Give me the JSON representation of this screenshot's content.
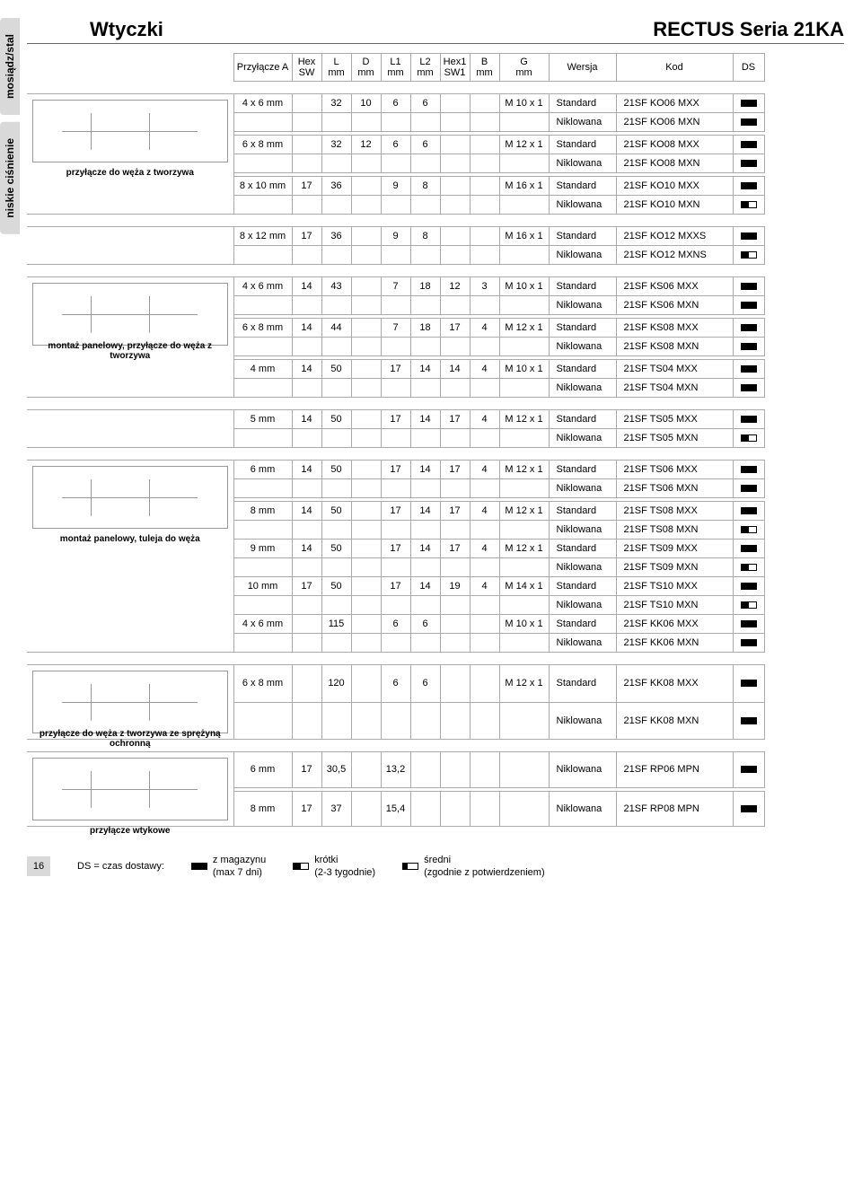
{
  "side_tabs": [
    "mosiądz/stal",
    "niskie ciśnienie"
  ],
  "header": {
    "left": "Wtyczki",
    "right": "RECTUS Seria 21KA"
  },
  "columns": [
    "Przyłącze A",
    "Hex\nSW",
    "L\nmm",
    "D\nmm",
    "L1\nmm",
    "L2\nmm",
    "Hex1\nSW1",
    "B\nmm",
    "G\nmm",
    "Wersja",
    "Kod",
    "DS"
  ],
  "groups": [
    {
      "caption": "przyłącze do węża z tworzywa",
      "rows": [
        {
          "a": "4 x 6 mm",
          "hex": "",
          "l": "32",
          "d": "10",
          "l1": "6",
          "l2": "6",
          "hex1": "",
          "b": "",
          "g": "M 10 x 1",
          "ver": "Standard",
          "kod": "21SF KO06 MXX",
          "ds": "full"
        },
        {
          "a": "",
          "hex": "",
          "l": "",
          "d": "",
          "l1": "",
          "l2": "",
          "hex1": "",
          "b": "",
          "g": "",
          "ver": "Niklowana",
          "kod": "21SF KO06 MXN",
          "ds": "full"
        },
        null,
        {
          "a": "6 x 8 mm",
          "hex": "",
          "l": "32",
          "d": "12",
          "l1": "6",
          "l2": "6",
          "hex1": "",
          "b": "",
          "g": "M 12 x 1",
          "ver": "Standard",
          "kod": "21SF KO08 MXX",
          "ds": "full"
        },
        {
          "a": "",
          "hex": "",
          "l": "",
          "d": "",
          "l1": "",
          "l2": "",
          "hex1": "",
          "b": "",
          "g": "",
          "ver": "Niklowana",
          "kod": "21SF KO08 MXN",
          "ds": "full"
        },
        null,
        {
          "a": "8 x 10 mm",
          "hex": "17",
          "l": "36",
          "d": "",
          "l1": "9",
          "l2": "8",
          "hex1": "",
          "b": "",
          "g": "M 16 x 1",
          "ver": "Standard",
          "kod": "21SF KO10 MXX",
          "ds": "full"
        },
        {
          "a": "",
          "hex": "",
          "l": "",
          "d": "",
          "l1": "",
          "l2": "",
          "hex1": "",
          "b": "",
          "g": "",
          "ver": "Niklowana",
          "kod": "21SF KO10 MXN",
          "ds": "half"
        }
      ]
    },
    {
      "caption": "",
      "rows": [
        {
          "a": "8 x 12 mm",
          "hex": "17",
          "l": "36",
          "d": "",
          "l1": "9",
          "l2": "8",
          "hex1": "",
          "b": "",
          "g": "M 16 x 1",
          "ver": "Standard",
          "kod": "21SF KO12 MXXS",
          "ds": "full"
        },
        {
          "a": "",
          "hex": "",
          "l": "",
          "d": "",
          "l1": "",
          "l2": "",
          "hex1": "",
          "b": "",
          "g": "",
          "ver": "Niklowana",
          "kod": "21SF KO12 MXNS",
          "ds": "half"
        }
      ]
    },
    {
      "caption": "montaż panelowy,\nprzyłącze do węża z tworzywa",
      "rows": [
        {
          "a": "4 x 6 mm",
          "hex": "14",
          "l": "43",
          "d": "",
          "l1": "7",
          "l2": "18",
          "hex1": "12",
          "b": "3",
          "g": "M 10 x 1",
          "ver": "Standard",
          "kod": "21SF KS06 MXX",
          "ds": "full"
        },
        {
          "a": "",
          "hex": "",
          "l": "",
          "d": "",
          "l1": "",
          "l2": "",
          "hex1": "",
          "b": "",
          "g": "",
          "ver": "Niklowana",
          "kod": "21SF KS06 MXN",
          "ds": "full"
        },
        null,
        {
          "a": "6 x 8 mm",
          "hex": "14",
          "l": "44",
          "d": "",
          "l1": "7",
          "l2": "18",
          "hex1": "17",
          "b": "4",
          "g": "M 12 x 1",
          "ver": "Standard",
          "kod": "21SF KS08 MXX",
          "ds": "full"
        },
        {
          "a": "",
          "hex": "",
          "l": "",
          "d": "",
          "l1": "",
          "l2": "",
          "hex1": "",
          "b": "",
          "g": "",
          "ver": "Niklowana",
          "kod": "21SF KS08 MXN",
          "ds": "full"
        },
        null,
        {
          "a": "4 mm",
          "hex": "14",
          "l": "50",
          "d": "",
          "l1": "17",
          "l2": "14",
          "hex1": "14",
          "b": "4",
          "g": "M 10 x 1",
          "ver": "Standard",
          "kod": "21SF TS04 MXX",
          "ds": "full"
        },
        {
          "a": "",
          "hex": "",
          "l": "",
          "d": "",
          "l1": "",
          "l2": "",
          "hex1": "",
          "b": "",
          "g": "",
          "ver": "Niklowana",
          "kod": "21SF TS04 MXN",
          "ds": "full"
        }
      ]
    },
    {
      "caption": "",
      "rows": [
        {
          "a": "5 mm",
          "hex": "14",
          "l": "50",
          "d": "",
          "l1": "17",
          "l2": "14",
          "hex1": "17",
          "b": "4",
          "g": "M 12 x 1",
          "ver": "Standard",
          "kod": "21SF TS05 MXX",
          "ds": "full"
        },
        {
          "a": "",
          "hex": "",
          "l": "",
          "d": "",
          "l1": "",
          "l2": "",
          "hex1": "",
          "b": "",
          "g": "",
          "ver": "Niklowana",
          "kod": "21SF TS05 MXN",
          "ds": "half"
        }
      ]
    },
    {
      "caption": "montaż panelowy,\ntuleja do węża",
      "rows": [
        {
          "a": "6 mm",
          "hex": "14",
          "l": "50",
          "d": "",
          "l1": "17",
          "l2": "14",
          "hex1": "17",
          "b": "4",
          "g": "M 12 x 1",
          "ver": "Standard",
          "kod": "21SF TS06 MXX",
          "ds": "full"
        },
        {
          "a": "",
          "hex": "",
          "l": "",
          "d": "",
          "l1": "",
          "l2": "",
          "hex1": "",
          "b": "",
          "g": "",
          "ver": "Niklowana",
          "kod": "21SF TS06 MXN",
          "ds": "full"
        },
        null,
        {
          "a": "8 mm",
          "hex": "14",
          "l": "50",
          "d": "",
          "l1": "17",
          "l2": "14",
          "hex1": "17",
          "b": "4",
          "g": "M 12 x 1",
          "ver": "Standard",
          "kod": "21SF TS08 MXX",
          "ds": "full"
        },
        {
          "a": "",
          "hex": "",
          "l": "",
          "d": "",
          "l1": "",
          "l2": "",
          "hex1": "",
          "b": "",
          "g": "",
          "ver": "Niklowana",
          "kod": "21SF TS08 MXN",
          "ds": "half"
        },
        {
          "a": "9 mm",
          "hex": "14",
          "l": "50",
          "d": "",
          "l1": "17",
          "l2": "14",
          "hex1": "17",
          "b": "4",
          "g": "M 12 x 1",
          "ver": "Standard",
          "kod": "21SF TS09 MXX",
          "ds": "full"
        },
        {
          "a": "",
          "hex": "",
          "l": "",
          "d": "",
          "l1": "",
          "l2": "",
          "hex1": "",
          "b": "",
          "g": "",
          "ver": "Niklowana",
          "kod": "21SF TS09 MXN",
          "ds": "half"
        },
        {
          "a": "10 mm",
          "hex": "17",
          "l": "50",
          "d": "",
          "l1": "17",
          "l2": "14",
          "hex1": "19",
          "b": "4",
          "g": "M 14 x 1",
          "ver": "Standard",
          "kod": "21SF TS10 MXX",
          "ds": "full"
        },
        {
          "a": "",
          "hex": "",
          "l": "",
          "d": "",
          "l1": "",
          "l2": "",
          "hex1": "",
          "b": "",
          "g": "",
          "ver": "Niklowana",
          "kod": "21SF TS10 MXN",
          "ds": "half"
        },
        {
          "a": "4 x 6 mm",
          "hex": "",
          "l": "115",
          "d": "",
          "l1": "6",
          "l2": "6",
          "hex1": "",
          "b": "",
          "g": "M 10 x 1",
          "ver": "Standard",
          "kod": "21SF KK06 MXX",
          "ds": "full"
        },
        {
          "a": "",
          "hex": "",
          "l": "",
          "d": "",
          "l1": "",
          "l2": "",
          "hex1": "",
          "b": "",
          "g": "",
          "ver": "Niklowana",
          "kod": "21SF KK06 MXN",
          "ds": "full"
        }
      ]
    },
    {
      "caption": "przyłącze do węża z tworzywa\nze sprężyną ochronną",
      "rows": [
        {
          "a": "6 x 8 mm",
          "hex": "",
          "l": "120",
          "d": "",
          "l1": "6",
          "l2": "6",
          "hex1": "",
          "b": "",
          "g": "M 12 x 1",
          "ver": "Standard",
          "kod": "21SF KK08 MXX",
          "ds": "full"
        },
        {
          "a": "",
          "hex": "",
          "l": "",
          "d": "",
          "l1": "",
          "l2": "",
          "hex1": "",
          "b": "",
          "g": "",
          "ver": "Niklowana",
          "kod": "21SF KK08 MXN",
          "ds": "full"
        }
      ]
    },
    {
      "caption": "przyłącze wtykowe",
      "rows": [
        {
          "a": "6 mm",
          "hex": "17",
          "l": "30,5",
          "d": "",
          "l1": "13,2",
          "l2": "",
          "hex1": "",
          "b": "",
          "g": "",
          "ver": "Niklowana",
          "kod": "21SF RP06 MPN",
          "ds": "full"
        },
        null,
        {
          "a": "8 mm",
          "hex": "17",
          "l": "37",
          "d": "",
          "l1": "15,4",
          "l2": "",
          "hex1": "",
          "b": "",
          "g": "",
          "ver": "Niklowana",
          "kod": "21SF RP08 MPN",
          "ds": "full"
        }
      ]
    }
  ],
  "footer": {
    "page": "16",
    "label": "DS = czas dostawy:",
    "legend": [
      {
        "ds": "full",
        "text": "z magazynu\n(max 7 dni)"
      },
      {
        "ds": "half",
        "text": "krótki\n(2-3 tygodnie)"
      },
      {
        "ds": "third",
        "text": "średni\n(zgodnie z potwierdzeniem)"
      }
    ]
  }
}
